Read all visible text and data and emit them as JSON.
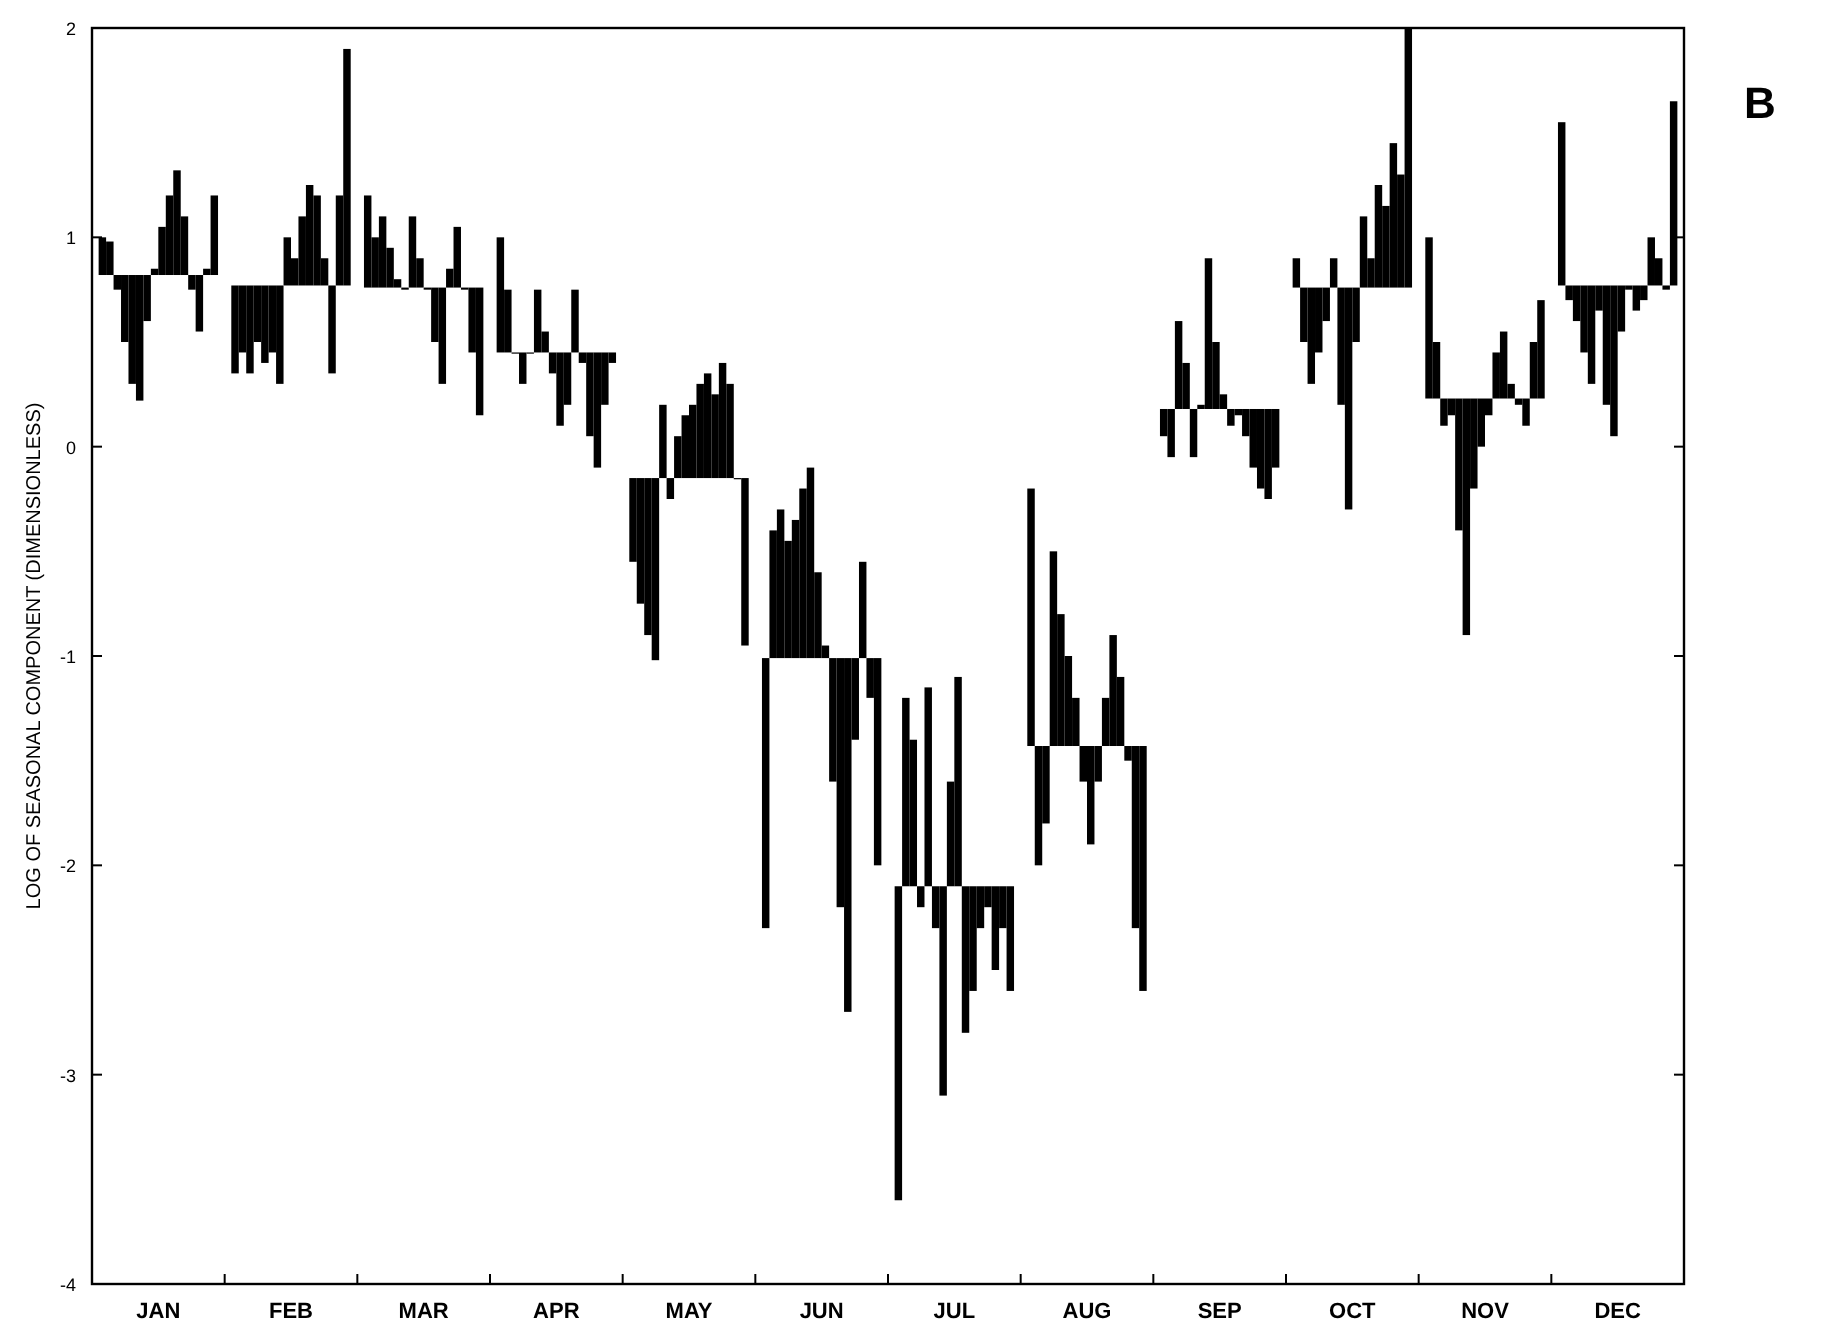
{
  "chart_data": {
    "type": "bar",
    "ylabel": "LOG OF SEASONAL COMPONENT (DIMENSIONLESS)",
    "annotations": [
      "B"
    ],
    "categories": [
      "JAN",
      "FEB",
      "MAR",
      "APR",
      "MAY",
      "JUN",
      "JUL",
      "AUG",
      "SEP",
      "OCT",
      "NOV",
      "DEC"
    ],
    "ylim": [
      -4,
      2
    ],
    "yticks": [
      -4,
      -3,
      -2,
      -1,
      0,
      1,
      2
    ],
    "series": [
      {
        "color": "#000000",
        "base": [
          0.82,
          0.77,
          0.76,
          0.45,
          -0.15,
          -1.01,
          -2.1,
          -1.43,
          0.18,
          0.76,
          0.23,
          0.77
        ],
        "values": [
          0.18,
          -0.42,
          0.44,
          0.55,
          -0.4,
          -1.29,
          -1.5,
          1.23,
          -0.13,
          0.14,
          0.77,
          0.78
        ]
      },
      {
        "color": "#000000",
        "base": [
          0.82,
          0.77,
          0.76,
          0.45,
          -0.15,
          -1.01,
          -2.1,
          -1.43,
          0.18,
          0.76,
          0.23,
          0.77
        ],
        "values": [
          0.16,
          -0.32,
          0.24,
          0.3,
          -0.6,
          0.61,
          0.9,
          -0.57,
          -0.23,
          -0.26,
          0.27,
          -0.07
        ]
      },
      {
        "color": "#000000",
        "base": [
          0.82,
          0.77,
          0.76,
          0.45,
          -0.15,
          -1.01,
          -2.1,
          -1.43,
          0.18,
          0.76,
          0.23,
          0.77
        ],
        "values": [
          -0.07,
          -0.42,
          0.34,
          0,
          -0.75,
          0.71,
          0.7,
          -0.37,
          0.42,
          -0.46,
          -0.13,
          -0.17
        ]
      },
      {
        "color": "#000000",
        "base": [
          0.82,
          0.77,
          0.76,
          0.45,
          -0.15,
          -1.01,
          -2.1,
          -1.43,
          0.18,
          0.76,
          0.23,
          0.77
        ],
        "values": [
          -0.32,
          -0.27,
          0.19,
          -0.15,
          -0.87,
          0.56,
          -0.1,
          0.93,
          0.22,
          -0.31,
          -0.08,
          -0.32
        ]
      },
      {
        "color": "#000000",
        "base": [
          0.82,
          0.77,
          0.76,
          0.45,
          -0.15,
          -1.01,
          -2.1,
          -1.43,
          0.18,
          0.76,
          0.23,
          0.77
        ],
        "values": [
          -0.52,
          -0.37,
          0.04,
          0,
          0.35,
          0.66,
          0.95,
          0.63,
          -0.23,
          -0.16,
          -0.63,
          -0.47
        ]
      },
      {
        "color": "#000000",
        "base": [
          0.82,
          0.77,
          0.76,
          0.45,
          -0.15,
          -1.01,
          -2.1,
          -1.43,
          0.18,
          0.76,
          0.23,
          0.77
        ],
        "values": [
          -0.6,
          -0.32,
          -0.01,
          0.3,
          -0.1,
          0.81,
          -0.2,
          0.43,
          0.02,
          0.14,
          -1.13,
          -0.12
        ]
      },
      {
        "color": "#000000",
        "base": [
          0.82,
          0.77,
          0.76,
          0.45,
          -0.15,
          -1.01,
          -2.1,
          -1.43,
          0.18,
          0.76,
          0.23,
          0.77
        ],
        "values": [
          -0.22,
          -0.47,
          0.34,
          0.1,
          0.2,
          0.91,
          -1.0,
          0.23,
          0.72,
          -0.56,
          -0.43,
          -0.57
        ]
      },
      {
        "color": "#000000",
        "base": [
          0.82,
          0.77,
          0.76,
          0.45,
          -0.15,
          -1.01,
          -2.1,
          -1.43,
          0.18,
          0.76,
          0.23,
          0.77
        ],
        "values": [
          0.03,
          0.23,
          0.14,
          -0.1,
          0.3,
          0.41,
          0.5,
          -0.17,
          0.32,
          -1.06,
          -0.23,
          -0.72
        ]
      },
      {
        "color": "#000000",
        "base": [
          0.82,
          0.77,
          0.76,
          0.45,
          -0.15,
          -1.01,
          -2.1,
          -1.43,
          0.18,
          0.76,
          0.23,
          0.77
        ],
        "values": [
          0.23,
          0.13,
          -0.01,
          -0.35,
          0.35,
          0.06,
          1.0,
          -0.47,
          0.07,
          -0.26,
          -0.08,
          -0.22
        ]
      },
      {
        "color": "#000000",
        "base": [
          0.82,
          0.77,
          0.76,
          0.45,
          -0.15,
          -1.01,
          -2.1,
          -1.43,
          0.18,
          0.76,
          0.23,
          0.77
        ],
        "values": [
          0.38,
          0.33,
          -0.26,
          -0.25,
          0.45,
          -0.59,
          -0.7,
          -0.17,
          -0.08,
          0.34,
          0.22,
          -0.02
        ]
      },
      {
        "color": "#000000",
        "base": [
          0.82,
          0.77,
          0.76,
          0.45,
          -0.15,
          -1.01,
          -2.1,
          -1.43,
          0.18,
          0.76,
          0.23,
          0.77
        ],
        "values": [
          0.5,
          0.48,
          -0.46,
          0.3,
          0.5,
          -1.19,
          -0.5,
          0.23,
          -0.03,
          0.14,
          0.32,
          -0.12
        ]
      },
      {
        "color": "#000000",
        "base": [
          0.82,
          0.77,
          0.76,
          0.45,
          -0.15,
          -1.01,
          -2.1,
          -1.43,
          0.18,
          0.76,
          0.23,
          0.77
        ],
        "values": [
          0.28,
          0.43,
          0.09,
          -0.05,
          0.4,
          -1.69,
          -0.2,
          0.53,
          -0.13,
          0.49,
          0.07,
          -0.07
        ]
      },
      {
        "color": "#000000",
        "base": [
          0.82,
          0.77,
          0.76,
          0.45,
          -0.15,
          -1.01,
          -2.1,
          -1.43,
          0.18,
          0.76,
          0.23,
          0.77
        ],
        "values": [
          -0.07,
          0.13,
          0.29,
          -0.4,
          0.55,
          -0.39,
          -0.1,
          0.33,
          -0.28,
          0.39,
          -0.03,
          0.23
        ]
      },
      {
        "color": "#000000",
        "base": [
          0.82,
          0.77,
          0.76,
          0.45,
          -0.15,
          -1.01,
          -2.1,
          -1.43,
          0.18,
          0.76,
          0.23,
          0.77
        ],
        "values": [
          -0.27,
          -0.42,
          -0.01,
          -0.55,
          0.45,
          0.46,
          -0.4,
          -0.07,
          -0.38,
          0.69,
          -0.13,
          0.13
        ]
      },
      {
        "color": "#000000",
        "base": [
          0.82,
          0.77,
          0.76,
          0.45,
          -0.15,
          -1.01,
          -2.1,
          -1.43,
          0.18,
          0.76,
          0.23,
          0.77
        ],
        "values": [
          0.03,
          0.43,
          -0.31,
          -0.25,
          0,
          -0.19,
          -0.2,
          -0.87,
          -0.43,
          0.54,
          0.27,
          -0.02
        ]
      },
      {
        "color": "#000000",
        "base": [
          0.82,
          0.77,
          0.76,
          0.45,
          -0.15,
          -1.01,
          -2.1,
          -1.43,
          0.18,
          0.76,
          0.23,
          0.77
        ],
        "values": [
          0.38,
          1.13,
          -0.61,
          -0.05,
          -0.8,
          -0.99,
          -0.5,
          -1.17,
          -0.28,
          1.24,
          0.47,
          0.88
        ]
      }
    ]
  }
}
